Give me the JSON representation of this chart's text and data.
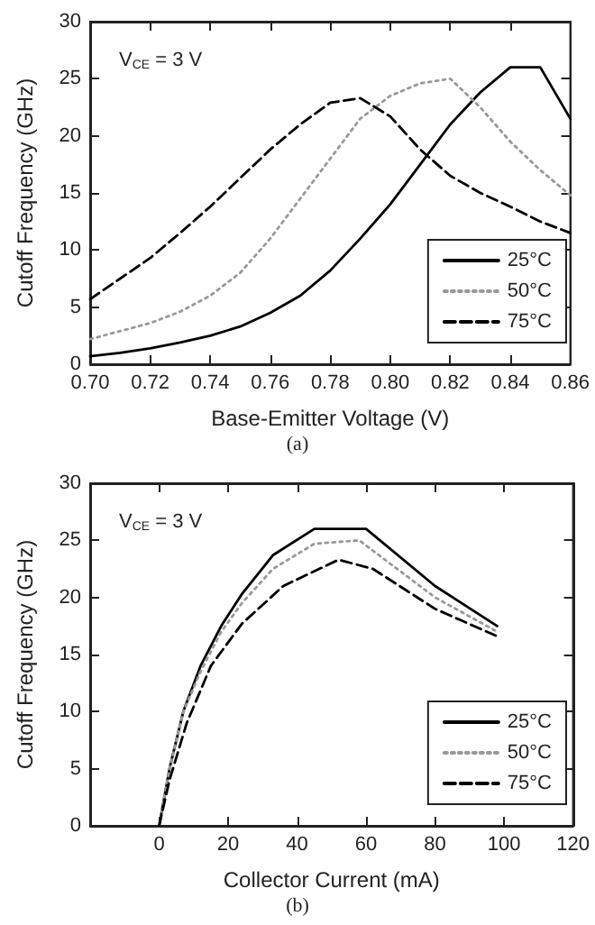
{
  "chart_data": [
    {
      "type": "line",
      "xlabel": "Base-Emitter Voltage (V)",
      "ylabel": "Cutoff Frequency (GHz)",
      "annotations": [
        "V$_{CE}$ = 3 V",
        "(a)"
      ],
      "x": [
        0.7,
        0.71,
        0.72,
        0.73,
        0.74,
        0.75,
        0.76,
        0.77,
        0.78,
        0.79,
        0.8,
        0.81,
        0.82,
        0.83,
        0.84,
        0.85,
        0.86
      ],
      "series": [
        {
          "name": "25°C",
          "color": "#000000",
          "line_style": "solid",
          "values": [
            0.7,
            1.0,
            1.4,
            1.9,
            2.5,
            3.3,
            4.5,
            6.0,
            8.2,
            11,
            14,
            17.5,
            21,
            23.8,
            26,
            26,
            21.5
          ]
        },
        {
          "name": "50°C",
          "color": "#999999",
          "line_style": "dotted",
          "values": [
            2.2,
            2.9,
            3.6,
            4.6,
            6,
            8,
            11,
            14.5,
            18,
            21.5,
            23.5,
            24.6,
            25,
            22.5,
            19.5,
            17,
            14.8
          ]
        },
        {
          "name": "75°C",
          "color": "#000000",
          "line_style": "dashed",
          "values": [
            5.7,
            7.5,
            9.3,
            11.5,
            13.8,
            16.3,
            18.8,
            21,
            22.9,
            23.3,
            21.7,
            18.8,
            16.5,
            15,
            13.8,
            12.5,
            11.5
          ]
        }
      ],
      "xlim": [
        0.7,
        0.86
      ],
      "xticks": [
        {
          "value": 0.7,
          "label": "0.70"
        },
        0.72,
        0.74,
        0.76,
        0.78,
        {
          "value": 0.8,
          "label": "0.80"
        },
        0.82,
        0.84,
        0.86
      ],
      "ylim": [
        0,
        30
      ],
      "yticks": [
        0,
        5,
        10,
        15,
        20,
        25,
        30
      ],
      "grid": false,
      "legend": "bottom right",
      "marker": "none"
    },
    {
      "type": "line",
      "xlabel": "Collector Current (mA)",
      "ylabel": "Cutoff Frequency (GHz)",
      "annotations": [
        "V$_{CE}$ = 3 V",
        "(b)"
      ],
      "series": [
        {
          "name": "25°C",
          "color": "#000000",
          "line_style": "solid",
          "x": [
            0,
            3,
            7,
            12,
            18,
            24,
            33,
            45,
            60,
            80,
            98
          ],
          "values": [
            0,
            5,
            10,
            14,
            17.5,
            20.3,
            23.7,
            26,
            26,
            21,
            17.5
          ]
        },
        {
          "name": "50°C",
          "color": "#999999",
          "line_style": "dotted",
          "x": [
            0,
            3,
            7,
            12,
            18,
            24,
            33,
            45,
            58,
            80,
            98
          ],
          "values": [
            0,
            5,
            10,
            13.5,
            17,
            19.5,
            22.5,
            24.7,
            25,
            20,
            17
          ]
        },
        {
          "name": "75°C",
          "color": "#000000",
          "line_style": "dashed",
          "x": [
            0,
            3,
            8,
            15,
            24,
            36,
            52,
            62,
            80,
            98
          ],
          "values": [
            0,
            4,
            9,
            14,
            17.7,
            21,
            23.3,
            22.5,
            19,
            16.6
          ]
        }
      ],
      "xlim": [
        -20,
        120
      ],
      "xticks": [
        {
          "value": -20,
          "label": null
        },
        0,
        20,
        40,
        60,
        80,
        100,
        120
      ],
      "ylim": [
        0,
        30
      ],
      "yticks": [
        0,
        5,
        10,
        15,
        20,
        25,
        30
      ],
      "grid": false,
      "legend": "bottom right",
      "marker": "none"
    }
  ]
}
